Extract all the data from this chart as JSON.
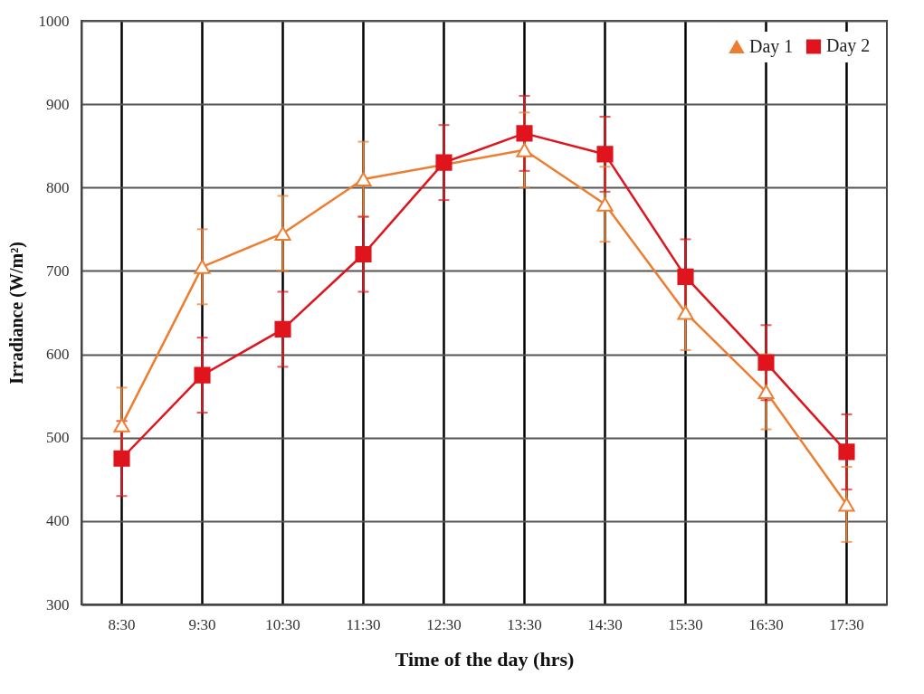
{
  "chart_data": {
    "type": "line",
    "xlabel": "Time of the day (hrs)",
    "ylabel": "Irradiance (W/m²)",
    "categories": [
      "8:30",
      "9:30",
      "10:30",
      "11:30",
      "12:30",
      "13:30",
      "14:30",
      "15:30",
      "16:30",
      "17:30"
    ],
    "series": [
      {
        "name": "Day 1",
        "color": "#ed7d31",
        "marker": "triangle",
        "values": [
          515,
          705,
          745,
          810,
          null,
          845,
          780,
          650,
          555,
          420
        ],
        "errors": [
          45,
          45,
          45,
          45,
          null,
          45,
          45,
          45,
          45,
          45
        ]
      },
      {
        "name": "Day 2",
        "color": "#e0141c",
        "marker": "square",
        "values": [
          475,
          575,
          630,
          720,
          830,
          865,
          840,
          693,
          590,
          483
        ],
        "errors": [
          45,
          45,
          45,
          45,
          45,
          45,
          45,
          45,
          45,
          45
        ]
      }
    ],
    "ylim": [
      300,
      1000
    ],
    "yticks": [
      300,
      400,
      500,
      600,
      700,
      800,
      900,
      1000
    ],
    "grid": true,
    "legend": "top right"
  }
}
